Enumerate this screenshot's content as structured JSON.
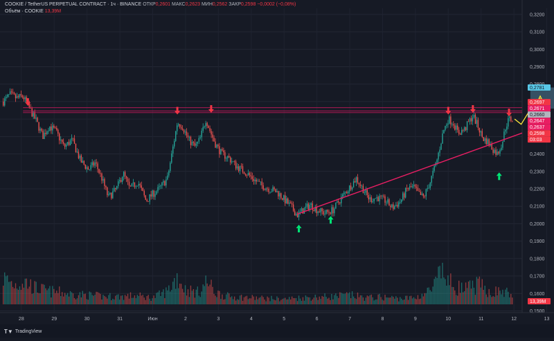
{
  "header": {
    "symbol": "COOKIE / TetherUS PERPETUAL CONTRACT · 1ч · BINANCE",
    "open_label": "ОТКР",
    "open_value": "0,2601",
    "high_label": "МАКС",
    "high_value": "0,2623",
    "low_label": "МИН",
    "low_value": "0,2562",
    "close_label": "ЗАКР",
    "close_value": "0,2598",
    "change": "−0,0002 (−0,08%)",
    "volume_label": "Объём · COOKIE",
    "volume_value": "13,39M"
  },
  "footer": {
    "brand": "TradingView"
  },
  "colors": {
    "background": "#161a25",
    "up": "#26a69a",
    "down": "#ef5350",
    "resistance_line": "#c2185b",
    "trendline": "#e91e63",
    "arrow_down": "#f23645",
    "arrow_up": "#00e676",
    "projection": "#ffeb3b",
    "target_box": "#3c5a6e"
  },
  "chart_data": {
    "type": "candlestick",
    "title": "COOKIE / TetherUS PERPETUAL CONTRACT · 1ч · BINANCE",
    "y_axis": {
      "ticks": [
        "0,3200",
        "0,3100",
        "0,3000",
        "0,2900",
        "0,2800",
        "0,2700",
        "0,2600",
        "0,2500",
        "0,2400",
        "0,2300",
        "0,2200",
        "0,2100",
        "0,2000",
        "0,1900",
        "0,1800",
        "0,1700",
        "0,1600",
        "0,1500"
      ],
      "ylim": [
        0.149,
        0.3235
      ]
    },
    "x_axis": {
      "ticks": [
        "28",
        "29",
        "30",
        "31",
        "Июн",
        "2",
        "3",
        "4",
        "5",
        "6",
        "7",
        "8",
        "9",
        "10",
        "11",
        "12",
        "13"
      ],
      "xlim": [
        -0.65,
        15.25
      ]
    },
    "price_labels": [
      {
        "value": "0,2781",
        "price": 0.2781,
        "bg": "#58c7e6",
        "fg": "#131722"
      },
      {
        "value": "0,2697",
        "price": 0.2697,
        "bg": "#f23645",
        "fg": "#ffffff"
      },
      {
        "value": "0,2671",
        "price": 0.2671,
        "bg": "#e91e63",
        "fg": "#ffffff"
      },
      {
        "value": "0,2660",
        "price": 0.266,
        "bg": "#b2b5be",
        "fg": "#131722"
      },
      {
        "value": "0,2647",
        "price": 0.2647,
        "bg": "#e91e63",
        "fg": "#ffffff"
      },
      {
        "value": "0,2637",
        "price": 0.2637,
        "bg": "#e91e63",
        "fg": "#ffffff"
      },
      {
        "value": "0,2598",
        "price": 0.2598,
        "bg": "#f23645",
        "fg": "#ffffff"
      },
      {
        "value": "03:03",
        "price": 0.2582,
        "bg": "#f23645",
        "fg": "#ffffff"
      }
    ],
    "volume_label": {
      "value": "13,39M",
      "bg": "#f23645",
      "fg": "#ffffff"
    },
    "price_path": [
      [
        -0.55,
        0.27
      ],
      [
        -0.35,
        0.274
      ],
      [
        -0.15,
        0.272
      ],
      [
        0.05,
        0.273
      ],
      [
        0.25,
        0.266
      ],
      [
        0.45,
        0.259
      ],
      [
        0.65,
        0.25
      ],
      [
        0.85,
        0.256
      ],
      [
        1.05,
        0.253
      ],
      [
        1.3,
        0.244
      ],
      [
        1.55,
        0.248
      ],
      [
        1.8,
        0.236
      ],
      [
        2.05,
        0.231
      ],
      [
        2.25,
        0.235
      ],
      [
        2.45,
        0.226
      ],
      [
        2.65,
        0.215
      ],
      [
        2.9,
        0.22
      ],
      [
        3.1,
        0.229
      ],
      [
        3.3,
        0.22
      ],
      [
        3.55,
        0.224
      ],
      [
        3.8,
        0.213
      ],
      [
        4.0,
        0.217
      ],
      [
        4.2,
        0.22
      ],
      [
        4.45,
        0.226
      ],
      [
        4.6,
        0.242
      ],
      [
        4.75,
        0.258
      ],
      [
        4.9,
        0.256
      ],
      [
        5.1,
        0.248
      ],
      [
        5.3,
        0.244
      ],
      [
        5.45,
        0.249
      ],
      [
        5.62,
        0.26
      ],
      [
        5.75,
        0.253
      ],
      [
        5.9,
        0.246
      ],
      [
        6.1,
        0.24
      ],
      [
        6.3,
        0.238
      ],
      [
        6.55,
        0.233
      ],
      [
        6.8,
        0.23
      ],
      [
        7.05,
        0.226
      ],
      [
        7.3,
        0.222
      ],
      [
        7.55,
        0.22
      ],
      [
        7.8,
        0.218
      ],
      [
        8.0,
        0.214
      ],
      [
        8.2,
        0.21
      ],
      [
        8.4,
        0.205
      ],
      [
        8.6,
        0.208
      ],
      [
        8.8,
        0.211
      ],
      [
        9.0,
        0.208
      ],
      [
        9.25,
        0.206
      ],
      [
        9.5,
        0.208
      ],
      [
        9.75,
        0.215
      ],
      [
        10.0,
        0.221
      ],
      [
        10.2,
        0.226
      ],
      [
        10.4,
        0.22
      ],
      [
        10.6,
        0.214
      ],
      [
        10.85,
        0.215
      ],
      [
        11.1,
        0.213
      ],
      [
        11.3,
        0.209
      ],
      [
        11.55,
        0.213
      ],
      [
        11.75,
        0.22
      ],
      [
        11.95,
        0.221
      ],
      [
        12.1,
        0.217
      ],
      [
        12.25,
        0.215
      ],
      [
        12.45,
        0.224
      ],
      [
        12.65,
        0.236
      ],
      [
        12.85,
        0.253
      ],
      [
        13.0,
        0.26
      ],
      [
        13.15,
        0.258
      ],
      [
        13.3,
        0.252
      ],
      [
        13.5,
        0.254
      ],
      [
        13.62,
        0.258
      ],
      [
        13.75,
        0.262
      ],
      [
        13.9,
        0.256
      ],
      [
        14.05,
        0.249
      ],
      [
        14.2,
        0.247
      ],
      [
        14.35,
        0.243
      ],
      [
        14.5,
        0.24
      ],
      [
        14.65,
        0.247
      ],
      [
        14.75,
        0.256
      ],
      [
        14.85,
        0.26
      ],
      [
        14.95,
        0.2598
      ]
    ],
    "volume_profile": [
      [
        -0.55,
        0.4
      ],
      [
        -0.2,
        0.3
      ],
      [
        0.1,
        0.35
      ],
      [
        0.4,
        0.25
      ],
      [
        0.8,
        0.2
      ],
      [
        1.2,
        0.18
      ],
      [
        1.6,
        0.15
      ],
      [
        2.0,
        0.14
      ],
      [
        2.5,
        0.12
      ],
      [
        3.0,
        0.12
      ],
      [
        3.5,
        0.13
      ],
      [
        4.0,
        0.1
      ],
      [
        4.45,
        0.2
      ],
      [
        4.75,
        0.42
      ],
      [
        5.0,
        0.22
      ],
      [
        5.4,
        0.18
      ],
      [
        5.65,
        0.35
      ],
      [
        5.9,
        0.18
      ],
      [
        6.3,
        0.12
      ],
      [
        7.0,
        0.1
      ],
      [
        7.5,
        0.09
      ],
      [
        8.0,
        0.08
      ],
      [
        8.5,
        0.1
      ],
      [
        9.0,
        0.11
      ],
      [
        9.5,
        0.12
      ],
      [
        10.0,
        0.14
      ],
      [
        10.5,
        0.1
      ],
      [
        11.0,
        0.11
      ],
      [
        11.5,
        0.09
      ],
      [
        12.0,
        0.1
      ],
      [
        12.5,
        0.22
      ],
      [
        12.8,
        0.48
      ],
      [
        13.1,
        0.3
      ],
      [
        13.5,
        0.22
      ],
      [
        13.9,
        0.3
      ],
      [
        14.3,
        0.18
      ],
      [
        14.6,
        0.2
      ],
      [
        14.95,
        0.15
      ]
    ],
    "volume_max": "13,39M",
    "resistance_lines": [
      {
        "price": 0.2665
      },
      {
        "price": 0.2647
      },
      {
        "price": 0.2637
      }
    ],
    "support_trendline": {
      "from": [
        8.4,
        0.2055
      ],
      "to": [
        15.25,
        0.252
      ]
    },
    "down_arrows": [
      [
        0.2,
        0.268
      ],
      [
        4.75,
        0.263
      ],
      [
        5.78,
        0.264
      ],
      [
        13.0,
        0.263
      ],
      [
        13.75,
        0.264
      ],
      [
        14.85,
        0.262
      ]
    ],
    "up_arrows": [
      [
        8.45,
        0.199
      ],
      [
        9.42,
        0.204
      ],
      [
        14.55,
        0.229
      ]
    ],
    "projection_path": [
      [
        15.02,
        0.26
      ],
      [
        15.22,
        0.257
      ],
      [
        15.45,
        0.264
      ],
      [
        15.63,
        0.26
      ],
      [
        15.8,
        0.272
      ]
    ],
    "target_box": {
      "x0": 15.5,
      "x1": 16.3,
      "price_top": 0.2781,
      "price_bottom": 0.266
    }
  }
}
